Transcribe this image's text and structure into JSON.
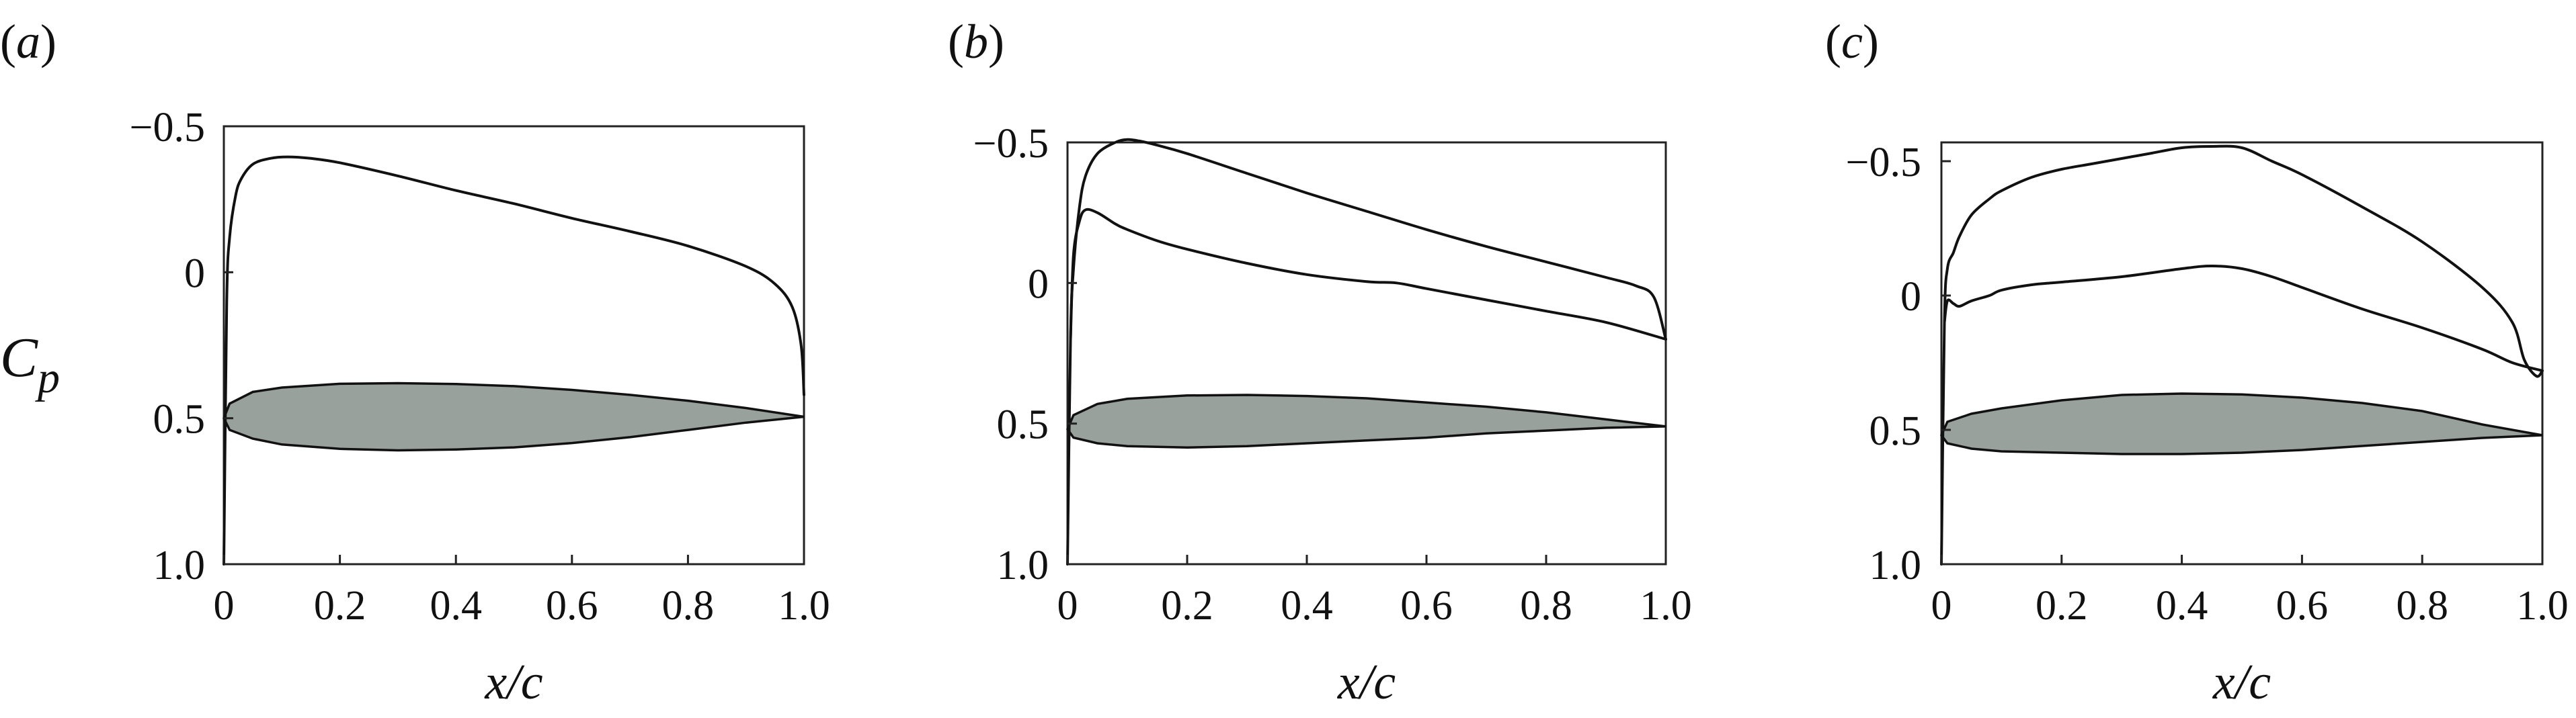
{
  "figure": {
    "ylabel": "C",
    "ylabel_sub": "p"
  },
  "chart_data": [
    {
      "type": "line",
      "panel_label": "(a)",
      "xlabel": "x/c",
      "ylabel": "Cp",
      "xlim": [
        0,
        1.0
      ],
      "ylim": [
        1.0,
        -0.5
      ],
      "y_inverted": true,
      "xticks": [
        "0",
        "0.2",
        "0.4",
        "0.6",
        "0.8",
        "1.0"
      ],
      "yticks": [
        "−0.5",
        "0",
        "0.5",
        "1.0"
      ],
      "ytick_values": [
        -0.5,
        0,
        0.5,
        1.0
      ],
      "series": [
        {
          "x": [
            0,
            0.005,
            0.01,
            0.02,
            0.03,
            0.05,
            0.08,
            0.11,
            0.15,
            0.2,
            0.3,
            0.4,
            0.5,
            0.6,
            0.7,
            0.8,
            0.9,
            0.95,
            0.98,
            0.995,
            1.0
          ],
          "y": [
            1.0,
            0.1,
            -0.12,
            -0.26,
            -0.32,
            -0.37,
            -0.39,
            -0.395,
            -0.39,
            -0.375,
            -0.33,
            -0.28,
            -0.235,
            -0.185,
            -0.14,
            -0.09,
            -0.02,
            0.04,
            0.12,
            0.25,
            0.42
          ]
        }
      ],
      "airfoil": {
        "upper": {
          "x": [
            0,
            0.01,
            0.05,
            0.1,
            0.2,
            0.3,
            0.4,
            0.5,
            0.6,
            0.7,
            0.8,
            0.9,
            1.0
          ],
          "y": [
            0.5,
            0.45,
            0.41,
            0.395,
            0.382,
            0.38,
            0.383,
            0.39,
            0.403,
            0.42,
            0.44,
            0.465,
            0.495
          ]
        },
        "lower": {
          "x": [
            0,
            0.01,
            0.05,
            0.1,
            0.2,
            0.3,
            0.4,
            0.5,
            0.6,
            0.7,
            0.8,
            0.9,
            1.0
          ],
          "y": [
            0.5,
            0.54,
            0.57,
            0.59,
            0.605,
            0.61,
            0.607,
            0.6,
            0.585,
            0.565,
            0.54,
            0.515,
            0.495
          ]
        }
      }
    },
    {
      "type": "line",
      "panel_label": "(b)",
      "xlabel": "x/c",
      "ylabel": "Cp",
      "xlim": [
        0,
        1.0
      ],
      "ylim": [
        1.0,
        -0.5
      ],
      "y_inverted": true,
      "xticks": [
        "0",
        "0.2",
        "0.4",
        "0.6",
        "0.8",
        "1.0"
      ],
      "yticks": [
        "−0.5",
        "0",
        "0.5",
        "1.0"
      ],
      "ytick_values": [
        -0.5,
        0,
        0.5,
        1.0
      ],
      "series": [
        {
          "x": [
            0,
            0.005,
            0.01,
            0.02,
            0.03,
            0.05,
            0.08,
            0.1,
            0.12,
            0.15,
            0.2,
            0.3,
            0.4,
            0.5,
            0.6,
            0.7,
            0.8,
            0.9,
            0.95,
            0.98,
            1.0
          ],
          "y": [
            1.0,
            0.2,
            -0.05,
            -0.27,
            -0.38,
            -0.46,
            -0.5,
            -0.51,
            -0.505,
            -0.49,
            -0.46,
            -0.39,
            -0.32,
            -0.255,
            -0.19,
            -0.13,
            -0.075,
            -0.02,
            0.01,
            0.05,
            0.2
          ]
        },
        {
          "x": [
            0.005,
            0.01,
            0.02,
            0.03,
            0.05,
            0.08,
            0.1,
            0.15,
            0.2,
            0.3,
            0.4,
            0.5,
            0.55,
            0.6,
            0.7,
            0.8,
            0.9,
            1.0
          ],
          "y": [
            0.2,
            -0.1,
            -0.22,
            -0.26,
            -0.25,
            -0.21,
            -0.19,
            -0.15,
            -0.12,
            -0.07,
            -0.03,
            -0.005,
            0.0,
            0.02,
            0.06,
            0.1,
            0.14,
            0.2
          ]
        }
      ],
      "airfoil": {
        "upper": {
          "x": [
            0,
            0.01,
            0.05,
            0.1,
            0.2,
            0.3,
            0.4,
            0.5,
            0.6,
            0.7,
            0.8,
            0.9,
            1.0
          ],
          "y": [
            0.52,
            0.47,
            0.43,
            0.412,
            0.4,
            0.398,
            0.402,
            0.41,
            0.425,
            0.44,
            0.46,
            0.485,
            0.51
          ]
        },
        "lower": {
          "x": [
            0,
            0.01,
            0.05,
            0.1,
            0.2,
            0.3,
            0.4,
            0.5,
            0.6,
            0.7,
            0.8,
            0.9,
            1.0
          ],
          "y": [
            0.52,
            0.55,
            0.57,
            0.58,
            0.585,
            0.58,
            0.57,
            0.56,
            0.55,
            0.535,
            0.525,
            0.515,
            0.51
          ]
        }
      }
    },
    {
      "type": "line",
      "panel_label": "(c)",
      "xlabel": "x/c",
      "ylabel": "Cp",
      "xlim": [
        0,
        1.0
      ],
      "ylim": [
        1.0,
        -0.57
      ],
      "y_inverted": true,
      "xticks": [
        "0",
        "0.2",
        "0.4",
        "0.6",
        "0.8",
        "1.0"
      ],
      "yticks": [
        "−0.5",
        "0",
        "0.5",
        "1.0"
      ],
      "ytick_values": [
        -0.5,
        0,
        0.5,
        1.0
      ],
      "series": [
        {
          "x": [
            0,
            0.005,
            0.01,
            0.02,
            0.03,
            0.05,
            0.08,
            0.1,
            0.15,
            0.2,
            0.25,
            0.3,
            0.35,
            0.4,
            0.45,
            0.5,
            0.55,
            0.6,
            0.7,
            0.8,
            0.9,
            0.95,
            0.97,
            0.99,
            1.0
          ],
          "y": [
            1.0,
            0.1,
            -0.1,
            -0.16,
            -0.22,
            -0.3,
            -0.36,
            -0.39,
            -0.44,
            -0.47,
            -0.49,
            -0.51,
            -0.53,
            -0.55,
            -0.555,
            -0.55,
            -0.5,
            -0.45,
            -0.33,
            -0.2,
            -0.03,
            0.1,
            0.24,
            0.3,
            0.28
          ]
        },
        {
          "x": [
            0.005,
            0.01,
            0.02,
            0.03,
            0.05,
            0.08,
            0.1,
            0.15,
            0.2,
            0.3,
            0.4,
            0.45,
            0.5,
            0.55,
            0.6,
            0.7,
            0.8,
            0.9,
            0.95,
            1.0
          ],
          "y": [
            0.1,
            0.02,
            0.03,
            0.04,
            0.02,
            0.0,
            -0.02,
            -0.04,
            -0.05,
            -0.07,
            -0.1,
            -0.11,
            -0.1,
            -0.07,
            -0.03,
            0.05,
            0.12,
            0.2,
            0.25,
            0.28
          ]
        }
      ],
      "airfoil": {
        "upper": {
          "x": [
            0,
            0.01,
            0.05,
            0.1,
            0.2,
            0.3,
            0.4,
            0.5,
            0.6,
            0.7,
            0.8,
            0.9,
            1.0
          ],
          "y": [
            0.52,
            0.47,
            0.44,
            0.42,
            0.39,
            0.37,
            0.365,
            0.368,
            0.38,
            0.4,
            0.43,
            0.48,
            0.52
          ]
        },
        "lower": {
          "x": [
            0,
            0.01,
            0.05,
            0.1,
            0.2,
            0.3,
            0.4,
            0.5,
            0.6,
            0.7,
            0.8,
            0.9,
            1.0
          ],
          "y": [
            0.52,
            0.55,
            0.57,
            0.58,
            0.585,
            0.59,
            0.59,
            0.585,
            0.575,
            0.56,
            0.545,
            0.53,
            0.52
          ]
        }
      }
    }
  ]
}
